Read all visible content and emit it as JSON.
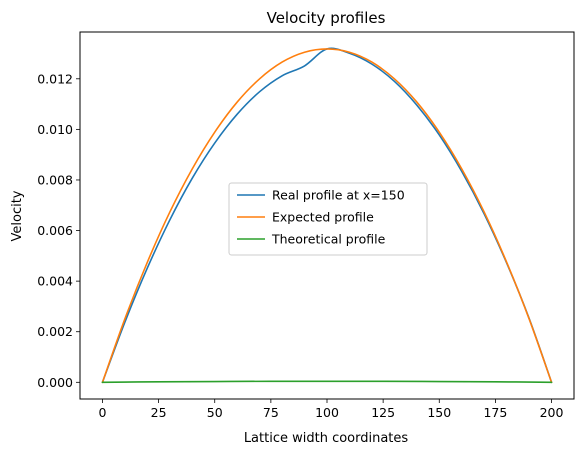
{
  "chart_data": {
    "type": "line",
    "title": "Velocity profiles",
    "xlabel": "Lattice width coordinates",
    "ylabel": "Velocity",
    "xlim": [
      -10,
      210
    ],
    "ylim": [
      -0.00066,
      0.01385
    ],
    "xticks": [
      0,
      25,
      50,
      75,
      100,
      125,
      150,
      175,
      200
    ],
    "xtick_labels": [
      "0",
      "25",
      "50",
      "75",
      "100",
      "125",
      "150",
      "175",
      "200"
    ],
    "yticks": [
      0.0,
      0.002,
      0.004,
      0.006,
      0.008,
      0.01,
      0.012
    ],
    "ytick_labels": [
      "0.000",
      "0.002",
      "0.004",
      "0.006",
      "0.008",
      "0.010",
      "0.012"
    ],
    "grid": false,
    "legend_position": "center",
    "series": [
      {
        "name": "Real profile at x=150",
        "color": "#1f77b4",
        "x": [
          0,
          10,
          20,
          30,
          40,
          50,
          60,
          70,
          80,
          90,
          100,
          110,
          120,
          130,
          140,
          150,
          160,
          170,
          180,
          190,
          200
        ],
        "y": [
          0.0,
          0.00238,
          0.00452,
          0.00642,
          0.00807,
          0.00946,
          0.0106,
          0.01149,
          0.01212,
          0.01251,
          0.01318,
          0.01301,
          0.01258,
          0.0119,
          0.01096,
          0.00978,
          0.00834,
          0.00666,
          0.00472,
          0.00253,
          0.0
        ]
      },
      {
        "name": "Expected profile",
        "color": "#ff7f0e",
        "x": [
          0,
          10,
          20,
          30,
          40,
          50,
          60,
          70,
          80,
          90,
          100,
          110,
          120,
          130,
          140,
          150,
          160,
          170,
          180,
          190,
          200
        ],
        "y": [
          0.0,
          0.00251,
          0.00475,
          0.00673,
          0.00844,
          0.00989,
          0.01108,
          0.012,
          0.01266,
          0.01305,
          0.01318,
          0.01305,
          0.01266,
          0.012,
          0.01108,
          0.00989,
          0.00844,
          0.00673,
          0.00475,
          0.00251,
          0.0
        ]
      },
      {
        "name": "Theoretical profile",
        "color": "#2ca02c",
        "x": [
          0,
          25,
          50,
          75,
          100,
          125,
          150,
          175,
          200
        ],
        "y": [
          0.0,
          2e-05,
          3e-05,
          4e-05,
          4e-05,
          4e-05,
          3e-05,
          2e-05,
          0.0
        ]
      }
    ]
  }
}
